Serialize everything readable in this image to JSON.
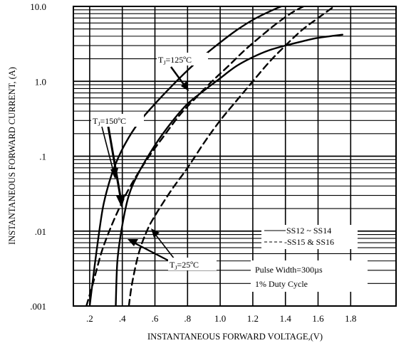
{
  "chart_data": {
    "type": "line",
    "title": "",
    "xlabel": "INSTANTANEOUS FORWARD VOLTAGE,(V)",
    "ylabel": "INSTANTANEOUS FORWARD CURRENT, (A)",
    "xlim": [
      0.1,
      1.75
    ],
    "ylim": [
      0.001,
      10
    ],
    "y_scale": "log",
    "grid": true,
    "x_ticks": [
      ".2",
      ".4",
      ".6",
      ".8",
      "1.0",
      "1.2",
      "1.4",
      "1.6",
      "1.8"
    ],
    "x_tick_values": [
      0.2,
      0.4,
      0.6,
      0.8,
      1.0,
      1.2,
      1.4,
      1.6,
      1.8
    ],
    "y_ticks": [
      ".001",
      ".01",
      ".1",
      "1.0",
      "10.0"
    ],
    "y_tick_values": [
      0.001,
      0.01,
      0.1,
      1,
      10
    ],
    "legend": {
      "placement": "bottom-right",
      "entries": [
        {
          "label": "SS12 ~ SS14",
          "style": "solid"
        },
        {
          "label": "-SS15 & SS16",
          "style": "dashed"
        }
      ]
    },
    "note_lines": [
      "Pulse Width=300µs",
      "1% Duty Cycle"
    ],
    "annotations": [
      {
        "prefix": "T",
        "sub": "J",
        "suffix": "=125ºC"
      },
      {
        "prefix": "T",
        "sub": "J",
        "suffix": "=150ºC"
      },
      {
        "prefix": "T",
        "sub": "J",
        "suffix": "=25ºC"
      }
    ],
    "series": [
      {
        "style": "solid",
        "x": [
          0.2,
          0.24,
          0.28,
          0.32,
          0.36,
          0.42,
          0.5,
          0.6,
          0.7,
          0.8,
          0.9,
          1.0,
          1.1,
          1.2,
          1.3,
          1.4,
          1.5,
          1.55
        ],
        "y": [
          0.001,
          0.005,
          0.02,
          0.045,
          0.08,
          0.15,
          0.28,
          0.5,
          0.85,
          1.4,
          2.2,
          3.3,
          4.8,
          6.6,
          8.5,
          10.5,
          12.0,
          12.5
        ]
      },
      {
        "style": "solid",
        "x": [
          0.36,
          0.37,
          0.4,
          0.44,
          0.5,
          0.6,
          0.7,
          0.8,
          0.9,
          1.0,
          1.1,
          1.2,
          1.3,
          1.4,
          1.5,
          1.6,
          1.75
        ],
        "y": [
          0.001,
          0.004,
          0.012,
          0.03,
          0.06,
          0.14,
          0.28,
          0.5,
          0.75,
          1.1,
          1.6,
          2.1,
          2.6,
          3.0,
          3.4,
          3.8,
          4.2
        ]
      },
      {
        "style": "dashed",
        "x": [
          0.18,
          0.22,
          0.27,
          0.32,
          0.38,
          0.45,
          0.55,
          0.65,
          0.75,
          0.85,
          0.95,
          1.05,
          1.15,
          1.25,
          1.35,
          1.45,
          1.55
        ],
        "y": [
          0.001,
          0.002,
          0.005,
          0.01,
          0.02,
          0.04,
          0.09,
          0.18,
          0.35,
          0.6,
          1.0,
          1.6,
          2.6,
          4.0,
          6.0,
          8.5,
          11.0
        ]
      },
      {
        "style": "dashed",
        "x": [
          0.44,
          0.46,
          0.5,
          0.55,
          0.6,
          0.7,
          0.8,
          0.9,
          1.0,
          1.1,
          1.2,
          1.3,
          1.4,
          1.5,
          1.6,
          1.7,
          1.75
        ],
        "y": [
          0.001,
          0.002,
          0.005,
          0.01,
          0.016,
          0.035,
          0.07,
          0.15,
          0.3,
          0.55,
          1.0,
          1.8,
          3.0,
          4.8,
          7.0,
          10.0,
          11.5
        ]
      }
    ]
  }
}
